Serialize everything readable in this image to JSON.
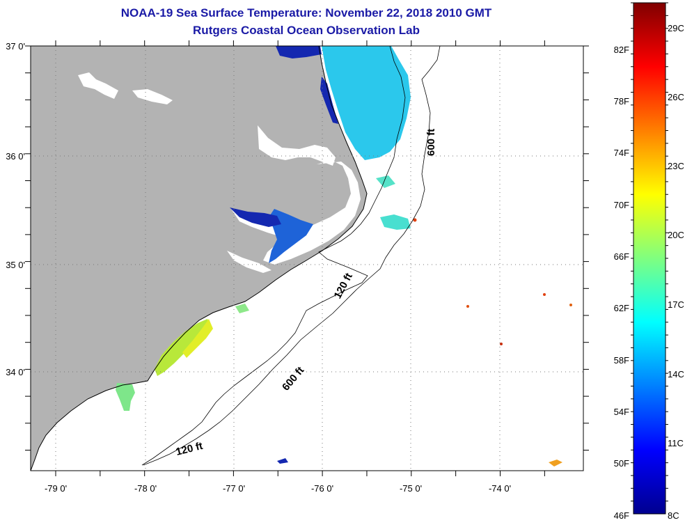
{
  "header": {
    "title": "NOAA-19 Sea Surface Temperature:  November 22, 2018 2010 GMT",
    "subtitle": "Rutgers Coastal Ocean Observation Lab"
  },
  "map": {
    "lon_labels": [
      "-79 0'",
      "-78 0'",
      "-77 0'",
      "-76 0'",
      "-75 0'",
      "-74 0'"
    ],
    "lat_labels": [
      "37 0'",
      "36 0'",
      "35 0'",
      "34 0'"
    ],
    "contour_labels": {
      "north_600": "600 ft",
      "mid_120": "120 ft",
      "mid_600": "600 ft",
      "south_120": "120 ft"
    }
  },
  "colorbar": {
    "fahrenheit": [
      "82F",
      "78F",
      "74F",
      "70F",
      "66F",
      "62F",
      "58F",
      "54F",
      "50F",
      "46F"
    ],
    "celsius": [
      "29C",
      "26C",
      "23C",
      "20C",
      "17C",
      "14C",
      "11C",
      "8C"
    ]
  },
  "colors": {
    "title": "#1a1aa6",
    "land": "#b3b3b3",
    "grid": "#777777"
  }
}
